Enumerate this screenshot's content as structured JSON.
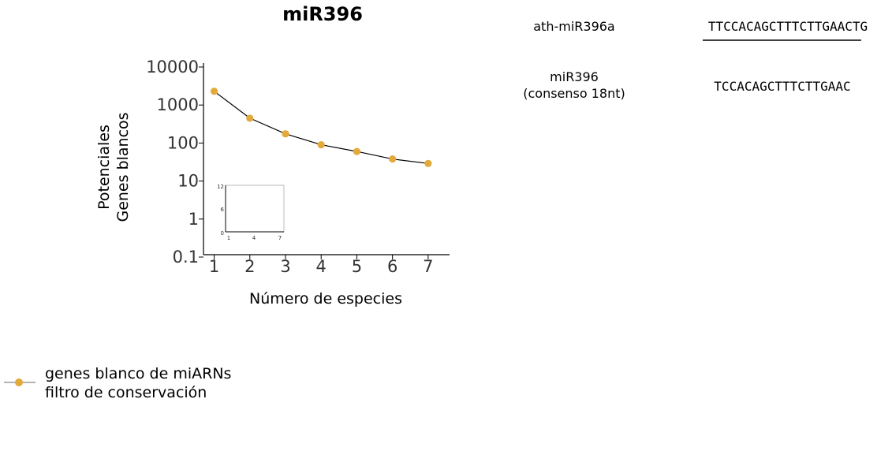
{
  "chart_data": {
    "type": "line",
    "title": "miR396",
    "xlabel": "Número de especies",
    "ylabel": [
      "Potenciales",
      "Genes blancos"
    ],
    "yscale": "log",
    "ylim": [
      0.1,
      10000
    ],
    "xlim": [
      0.7,
      7.6
    ],
    "y_ticks": [
      "10000",
      "1000",
      "100",
      "10",
      "1",
      "0.1"
    ],
    "x_ticks": [
      "1",
      "2",
      "3",
      "4",
      "5",
      "6",
      "7"
    ],
    "grid": false,
    "legend_position": "bottom-left",
    "series": [
      {
        "name": "genes blanco de miARNs filtro de conservación",
        "color": "#e3a93a",
        "x": [
          1,
          2,
          3,
          4,
          5,
          6,
          7
        ],
        "y": [
          2300,
          450,
          175,
          90,
          60,
          38,
          29
        ]
      }
    ],
    "inset": {
      "y_ticks": [
        "12",
        "6",
        "0"
      ],
      "x_ticks": [
        "1",
        "4",
        "7"
      ]
    }
  },
  "legend": {
    "line1": "genes blanco de miARNs",
    "line2": "filtro de conservación"
  },
  "sequences": [
    {
      "name_lines": [
        "ath-miR396a"
      ],
      "sequence": "TTCCACAGCTTTCTTGAACTG",
      "underlined": true
    },
    {
      "name_lines": [
        "miR396",
        "(consenso 18nt)"
      ],
      "sequence": "TCCACAGCTTTCTTGAAC",
      "underlined": false
    }
  ]
}
